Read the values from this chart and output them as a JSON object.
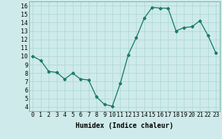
{
  "x": [
    0,
    1,
    2,
    3,
    4,
    5,
    6,
    7,
    8,
    9,
    10,
    11,
    12,
    13,
    14,
    15,
    16,
    17,
    18,
    19,
    20,
    21,
    22,
    23
  ],
  "y": [
    10,
    9.5,
    8.2,
    8.1,
    7.3,
    8.0,
    7.3,
    7.2,
    5.2,
    4.3,
    4.1,
    6.8,
    10.2,
    12.2,
    14.5,
    15.8,
    15.7,
    15.7,
    13.0,
    13.4,
    13.5,
    14.2,
    12.5,
    10.4
  ],
  "line_color": "#1a7a6a",
  "marker": "D",
  "marker_size": 2.0,
  "bg_color": "#ceeaea",
  "grid_color": "#aad4d4",
  "xlabel": "Humidex (Indice chaleur)",
  "xlim": [
    -0.5,
    23.5
  ],
  "ylim": [
    3.5,
    16.5
  ],
  "xticks": [
    0,
    1,
    2,
    3,
    4,
    5,
    6,
    7,
    8,
    9,
    10,
    11,
    12,
    13,
    14,
    15,
    16,
    17,
    18,
    19,
    20,
    21,
    22,
    23
  ],
  "yticks": [
    4,
    5,
    6,
    7,
    8,
    9,
    10,
    11,
    12,
    13,
    14,
    15,
    16
  ],
  "xlabel_fontsize": 7,
  "tick_fontsize": 6,
  "linewidth": 1.0
}
